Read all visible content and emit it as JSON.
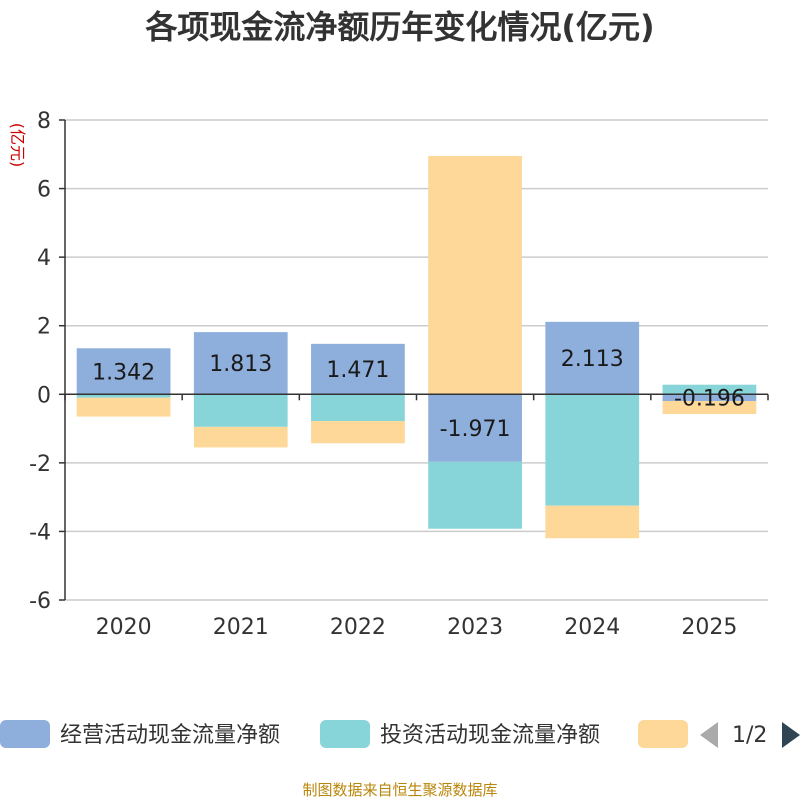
{
  "chart_data": {
    "type": "bar",
    "title": "各项现金流净额历年变化情况(亿元)",
    "ylabel": "(亿元)",
    "ylim": [
      -6,
      8
    ],
    "yticks": [
      8,
      6,
      4,
      2,
      0,
      -2,
      -4,
      -6
    ],
    "grid": true,
    "stacked": true,
    "categories": [
      "2020",
      "2021",
      "2022",
      "2023",
      "2024",
      "2025"
    ],
    "series": [
      {
        "name": "经营活动现金流量净额",
        "color": "#8eaedb",
        "values": [
          1.342,
          1.813,
          1.471,
          -1.971,
          2.113,
          -0.196
        ]
      },
      {
        "name": "投资活动现金流量净额",
        "color": "#87d5d8",
        "values": [
          -0.1,
          -0.95,
          -0.78,
          -1.95,
          -3.25,
          0.28
        ]
      },
      {
        "name": "",
        "color": "#fdd898",
        "values": [
          -0.55,
          -0.6,
          -0.65,
          6.95,
          -0.95,
          -0.38
        ]
      }
    ],
    "data_labels": [
      "1.342",
      "1.813",
      "1.471",
      "-1.971",
      "2.113",
      "-0.196"
    ],
    "legend_position": "bottom",
    "legend_page": "1/2"
  },
  "footer": "制图数据来自恒生聚源数据库",
  "colors": {
    "axis": "#333333",
    "grid": "#cccccc",
    "arrow_active": "#2f4554",
    "arrow_inactive": "#aaaaaa"
  }
}
